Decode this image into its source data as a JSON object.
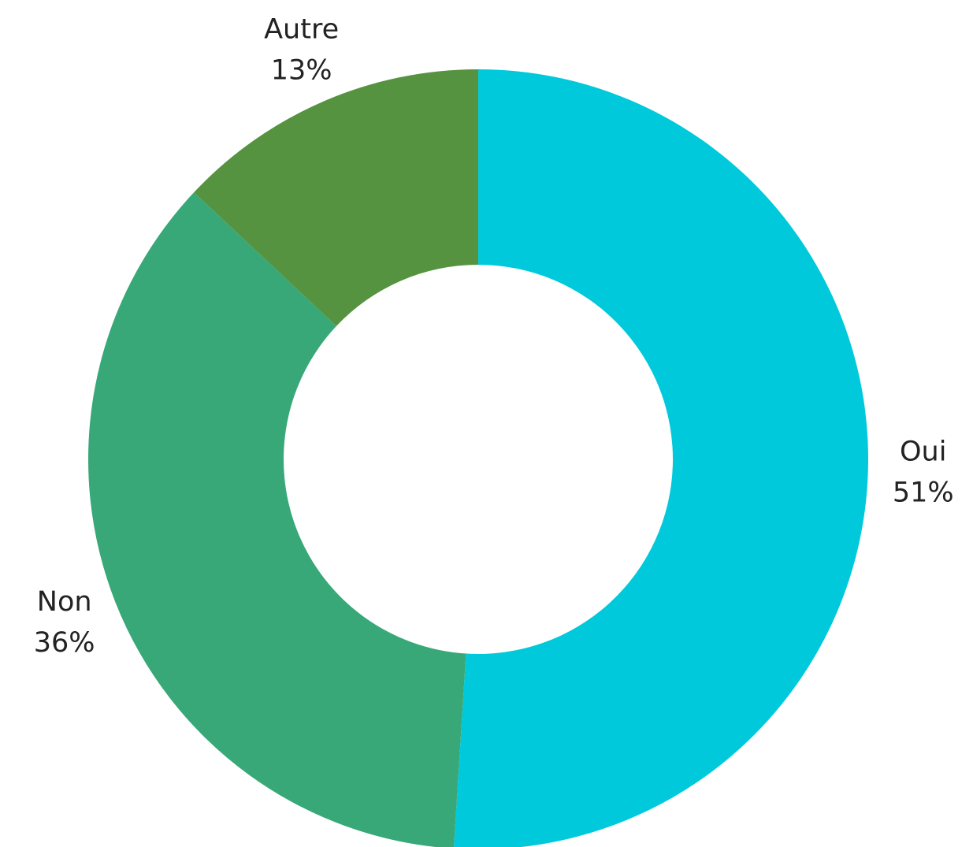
{
  "chart_data": {
    "type": "donut",
    "categories": [
      "Oui",
      "Non",
      "Autre"
    ],
    "values": [
      51,
      36,
      13
    ],
    "value_labels": [
      "51%",
      "36%",
      "13%"
    ],
    "colors": [
      "#00c9dc",
      "#38a878",
      "#569340"
    ]
  }
}
